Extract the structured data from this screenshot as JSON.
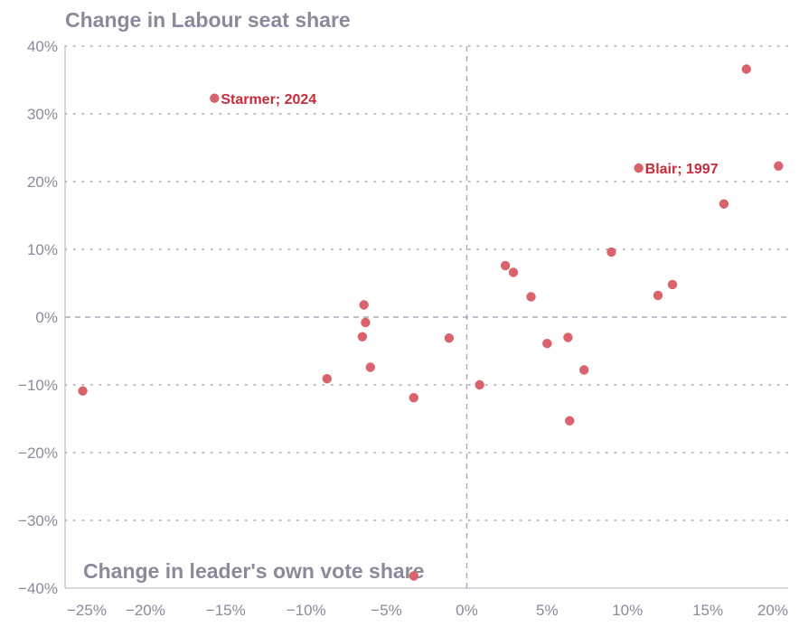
{
  "chart_data": {
    "type": "scatter",
    "title": "",
    "ylabel": "Change in Labour seat share",
    "xlabel": "Change in leader's own vote share",
    "xlim": [
      -25,
      20
    ],
    "ylim": [
      -40,
      40
    ],
    "x_ticks": [
      -25,
      -20,
      -15,
      -10,
      -5,
      0,
      5,
      10,
      15,
      20
    ],
    "y_ticks": [
      -40,
      -30,
      -20,
      -10,
      0,
      10,
      20,
      30,
      40
    ],
    "x_tick_labels": [
      "−25%",
      "−20%",
      "−15%",
      "−10%",
      "−5%",
      "0%",
      "5%",
      "10%",
      "15%",
      "20%"
    ],
    "y_tick_labels": [
      "−40%",
      "−30%",
      "−20%",
      "−10%",
      "0%",
      "10%",
      "20%",
      "30%",
      "40%"
    ],
    "grid": "horizontal-dotted",
    "point_color": "#d9626c",
    "label_color": "#c62c3c",
    "axis_text_color": "#8a8a9c",
    "points": [
      {
        "x": -15.7,
        "y": 32.3,
        "label": "Starmer; 2024"
      },
      {
        "x": 10.7,
        "y": 22.0,
        "label": "Blair; 1997"
      },
      {
        "x": 17.4,
        "y": 36.6
      },
      {
        "x": 19.4,
        "y": 22.3
      },
      {
        "x": 16.0,
        "y": 16.7
      },
      {
        "x": 9.0,
        "y": 9.6
      },
      {
        "x": 12.8,
        "y": 4.8
      },
      {
        "x": 11.9,
        "y": 3.2
      },
      {
        "x": 2.4,
        "y": 7.6
      },
      {
        "x": 2.9,
        "y": 6.6
      },
      {
        "x": 4.0,
        "y": 3.0
      },
      {
        "x": 6.3,
        "y": -3.0
      },
      {
        "x": 5.0,
        "y": -3.9
      },
      {
        "x": 7.3,
        "y": -7.8
      },
      {
        "x": 6.4,
        "y": -15.3
      },
      {
        "x": 0.8,
        "y": -10.0
      },
      {
        "x": -1.1,
        "y": -3.1
      },
      {
        "x": -3.3,
        "y": -11.9
      },
      {
        "x": -3.3,
        "y": -38.2
      },
      {
        "x": -6.4,
        "y": 1.8
      },
      {
        "x": -6.3,
        "y": -0.8
      },
      {
        "x": -6.5,
        "y": -2.9
      },
      {
        "x": -6.0,
        "y": -7.4
      },
      {
        "x": -8.7,
        "y": -9.1
      },
      {
        "x": -23.9,
        "y": -10.9
      }
    ]
  }
}
